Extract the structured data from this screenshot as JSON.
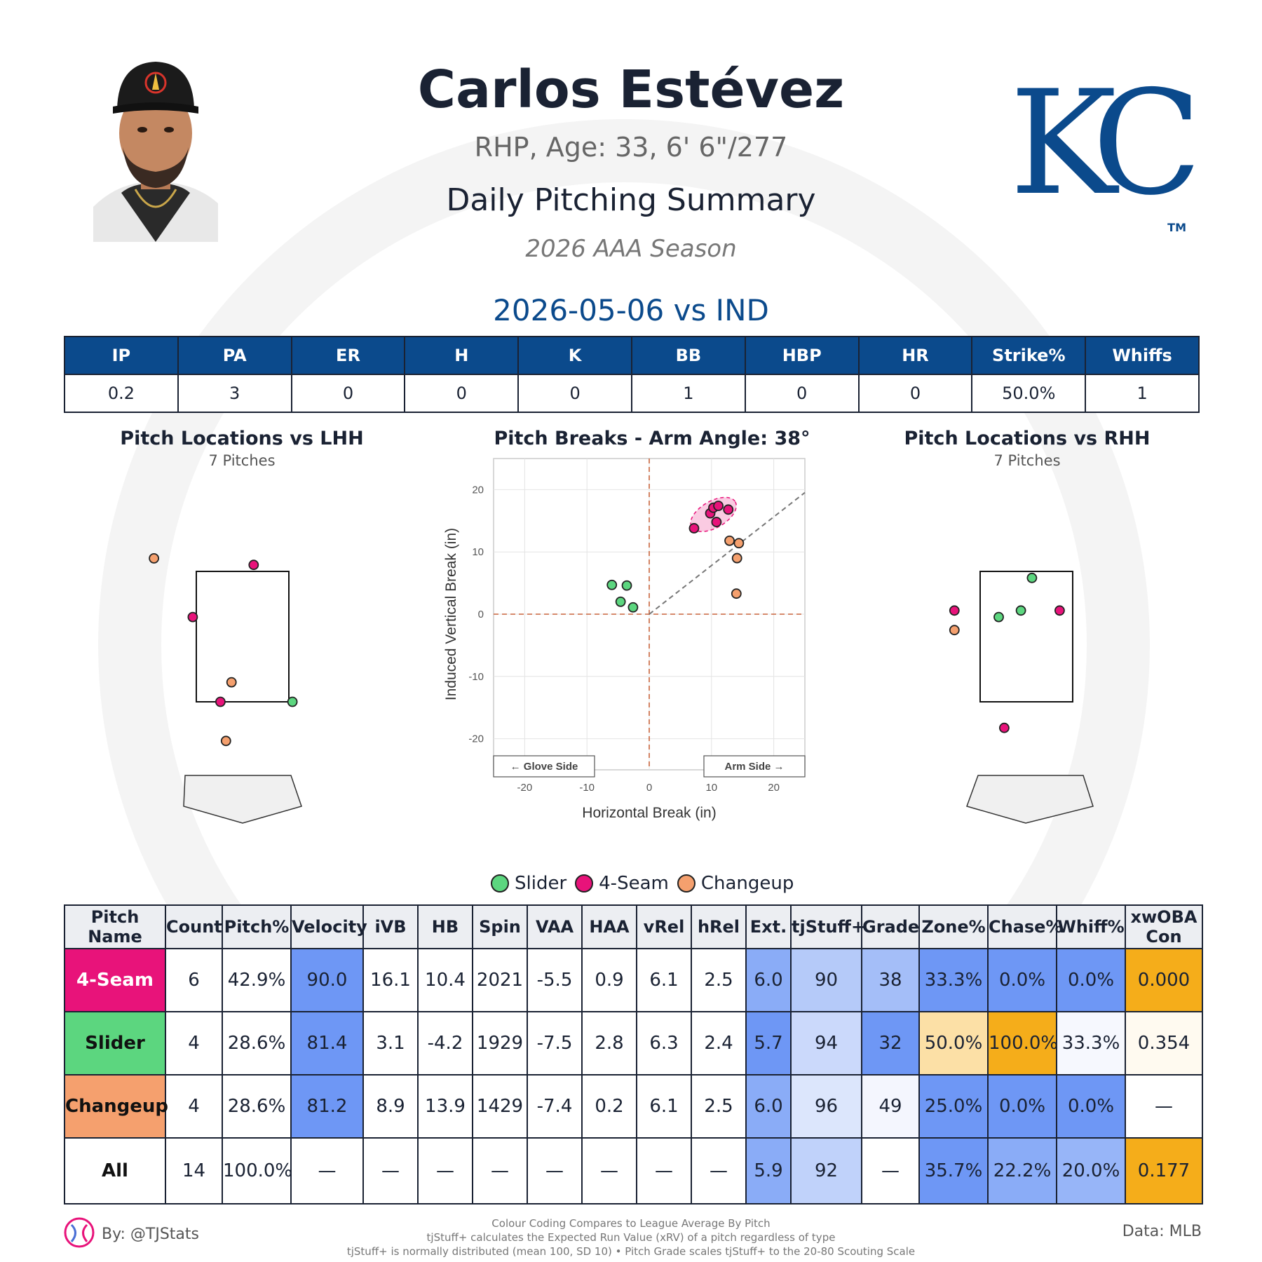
{
  "header": {
    "name": "Carlos Estévez",
    "subtitle": "RHP, Age: 33, 6' 6\"/277",
    "summary_title": "Daily Pitching Summary",
    "season": "2026 AAA Season",
    "game_title": "2026-05-06 vs IND",
    "logo_text": "KC",
    "logo_tm": "TM"
  },
  "colors": {
    "4-Seam": "#e8137a",
    "Slider": "#5cd67f",
    "Changeup": "#f5a06e",
    "header_blue": "#0b4a8c"
  },
  "stats_table": {
    "headers": [
      "IP",
      "PA",
      "ER",
      "H",
      "K",
      "BB",
      "HBP",
      "HR",
      "Strike%",
      "Whiffs"
    ],
    "values": [
      "0.2",
      "3",
      "0",
      "0",
      "0",
      "1",
      "0",
      "0",
      "50.0%",
      "1"
    ]
  },
  "plots": {
    "lhh": {
      "title": "Pitch Locations vs LHH",
      "sub": "7 Pitches"
    },
    "breaks": {
      "title": "Pitch Breaks - Arm Angle: 38°",
      "xlabel": "Horizontal Break (in)",
      "ylabel": "Induced Vertical Break (in)",
      "glove": "← Glove Side",
      "arm": "Arm Side →"
    },
    "rhh": {
      "title": "Pitch Locations vs RHH",
      "sub": "7 Pitches"
    }
  },
  "chart_data": [
    {
      "type": "scatter",
      "title": "Pitch Locations vs LHH",
      "note": "7 Pitches",
      "series": [
        {
          "name": "4-Seam",
          "points": [
            [
              0.2,
              3.6
            ],
            [
              -0.9,
              2.8
            ],
            [
              -0.4,
              1.5
            ]
          ]
        },
        {
          "name": "Slider",
          "points": [
            [
              0.9,
              1.5
            ]
          ]
        },
        {
          "name": "Changeup",
          "points": [
            [
              -1.6,
              3.7
            ],
            [
              -0.2,
              1.8
            ],
            [
              -0.3,
              0.9
            ]
          ]
        }
      ]
    },
    {
      "type": "scatter",
      "title": "Pitch Breaks - Arm Angle: 38°",
      "xlabel": "Horizontal Break (in)",
      "ylabel": "Induced Vertical Break (in)",
      "xlim": [
        -25,
        25
      ],
      "ylim": [
        -25,
        25
      ],
      "xticks": [
        -20,
        -10,
        0,
        10,
        20
      ],
      "yticks": [
        20,
        10,
        0,
        -10,
        -20
      ],
      "arm_angle_deg": 38,
      "series": [
        {
          "name": "4-Seam",
          "points": [
            [
              7.2,
              13.8
            ],
            [
              9.8,
              16.2
            ],
            [
              10.3,
              17.1
            ],
            [
              11.1,
              17.4
            ],
            [
              12.7,
              16.8
            ],
            [
              10.8,
              14.8
            ]
          ]
        },
        {
          "name": "Slider",
          "points": [
            [
              -6.0,
              4.7
            ],
            [
              -3.6,
              4.6
            ],
            [
              -4.6,
              2.0
            ],
            [
              -2.6,
              1.1
            ]
          ]
        },
        {
          "name": "Changeup",
          "points": [
            [
              12.9,
              11.8
            ],
            [
              14.4,
              11.4
            ],
            [
              14.1,
              9.0
            ],
            [
              14.0,
              3.3
            ]
          ]
        }
      ]
    },
    {
      "type": "scatter",
      "title": "Pitch Locations vs RHH",
      "note": "7 Pitches",
      "series": [
        {
          "name": "4-Seam",
          "points": [
            [
              -1.3,
              2.9
            ],
            [
              -0.4,
              1.1
            ],
            [
              0.6,
              2.9
            ]
          ]
        },
        {
          "name": "Slider",
          "points": [
            [
              0.1,
              3.4
            ],
            [
              -0.1,
              2.9
            ],
            [
              -0.5,
              2.8
            ]
          ]
        },
        {
          "name": "Changeup",
          "points": [
            [
              -1.3,
              2.6
            ]
          ]
        }
      ]
    }
  ],
  "legend": [
    "Slider",
    "4-Seam",
    "Changeup"
  ],
  "pitch_table": {
    "headers": [
      "Pitch Name",
      "Count",
      "Pitch%",
      "Velocity",
      "iVB",
      "HB",
      "Spin",
      "VAA",
      "HAA",
      "vRel",
      "hRel",
      "Ext.",
      "tjStuff+",
      "Grade",
      "Zone%",
      "Chase%",
      "Whiff%",
      "xwOBA Con"
    ],
    "rows": [
      {
        "name": "4-Seam",
        "cells": [
          "6",
          "42.9%",
          "90.0",
          "16.1",
          "10.4",
          "2021",
          "-5.5",
          "0.9",
          "6.1",
          "2.5",
          "6.0",
          "90",
          "38",
          "33.3%",
          "0.0%",
          "0.0%",
          "0.000"
        ]
      },
      {
        "name": "Slider",
        "cells": [
          "4",
          "28.6%",
          "81.4",
          "3.1",
          "-4.2",
          "1929",
          "-7.5",
          "2.8",
          "6.3",
          "2.4",
          "5.7",
          "94",
          "32",
          "50.0%",
          "100.0%",
          "33.3%",
          "0.354"
        ]
      },
      {
        "name": "Changeup",
        "cells": [
          "4",
          "28.6%",
          "81.2",
          "8.9",
          "13.9",
          "1429",
          "-7.4",
          "0.2",
          "6.1",
          "2.5",
          "6.0",
          "96",
          "49",
          "25.0%",
          "0.0%",
          "0.0%",
          "—"
        ]
      },
      {
        "name": "All",
        "cells": [
          "14",
          "100.0%",
          "—",
          "—",
          "—",
          "—",
          "—",
          "—",
          "—",
          "—",
          "5.9",
          "92",
          "—",
          "35.7%",
          "22.2%",
          "20.0%",
          "0.177"
        ]
      }
    ],
    "cell_colors": [
      [
        "#ffffff",
        "#ffffff",
        "#6e97f5",
        "#ffffff",
        "#ffffff",
        "#ffffff",
        "#ffffff",
        "#ffffff",
        "#ffffff",
        "#ffffff",
        "#8aacf7",
        "#b5caf9",
        "#a4bef8",
        "#6e97f5",
        "#6e97f5",
        "#6e97f5",
        "#f5ad1a"
      ],
      [
        "#ffffff",
        "#ffffff",
        "#6e97f5",
        "#ffffff",
        "#ffffff",
        "#ffffff",
        "#ffffff",
        "#ffffff",
        "#ffffff",
        "#ffffff",
        "#6e97f5",
        "#cbd9fb",
        "#6e97f5",
        "#fce0a6",
        "#f5ad1a",
        "#f6f8fe",
        "#fffaf0"
      ],
      [
        "#ffffff",
        "#ffffff",
        "#6e97f5",
        "#ffffff",
        "#ffffff",
        "#ffffff",
        "#ffffff",
        "#ffffff",
        "#ffffff",
        "#ffffff",
        "#8aacf7",
        "#dce6fc",
        "#f4f6fe",
        "#6e97f5",
        "#6e97f5",
        "#6e97f5",
        "#ffffff"
      ],
      [
        "#ffffff",
        "#ffffff",
        "#ffffff",
        "#ffffff",
        "#ffffff",
        "#ffffff",
        "#ffffff",
        "#ffffff",
        "#ffffff",
        "#ffffff",
        "#8aacf7",
        "#c0d2fa",
        "#ffffff",
        "#6e97f5",
        "#8aacf7",
        "#97b5f8",
        "#f5ad1a"
      ]
    ]
  },
  "footer": {
    "by": "By: @TJStats",
    "data": "Data: MLB",
    "lines": [
      "Colour Coding Compares to League Average By Pitch",
      "tjStuff+ calculates the Expected Run Value (xRV) of a pitch regardless of type",
      "tjStuff+ is normally distributed (mean 100, SD 10) • Pitch Grade scales tjStuff+ to the 20-80 Scouting Scale"
    ]
  }
}
